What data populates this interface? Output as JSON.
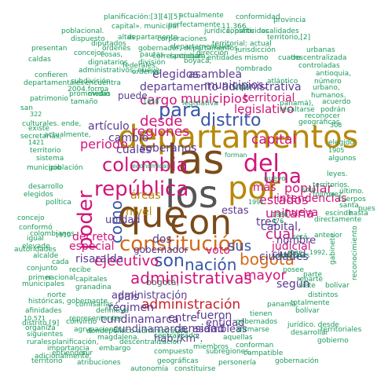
{
  "palette": {
    "green": "#1a9a5a",
    "teal": "#1a8a7a",
    "dark_green": "#2d6e2a",
    "dark_gray": "#555555",
    "gold": "#b8880a",
    "magenta": "#d0157a",
    "blue": "#3a56a8",
    "brown": "#7a4a1a",
    "red": "#c81e2a",
    "orange": "#d26a1a",
    "purple": "#5a3a90",
    "olive": "#6b7a1a"
  },
  "words": {
    "departamentos": "departamentos",
    "las": "las",
    "los": "los",
    "que": "que",
    "con": "con",
    "por": "por",
    "constitucion": "constitución",
    "colombia": "colombia",
    "republica": "república",
    "del": "del",
    "una": "una",
    "poder": "poder",
    "como": "como",
    "para": "para",
    "distrito": "distrito",
    "son": "son",
    "nacion": "nación",
    "sus": "sus",
    "bogota_big": "bogotá",
    "ejecutivo": "ejecutivo",
    "administrativas": "administrativas",
    "administracion": "administración",
    "regiones": "regiones",
    "desde": "desde",
    "cargo": "cargo",
    "municipios_big": "municipios",
    "capital": "capital",
    "legislativo": "legislativo",
    "territorial": "territorial",
    "estados": "estados",
    "unitaria": "unitaria",
    "popular": "popular",
    "cual": "cual",
    "mayor": "mayor",
    "voto": "voto",
    "nivel": "nivel",
    "areas": "áreas",
    "periodo": "periodo",
    "decreto": "decreto",
    "especial": "especial",
    "risaralda": "risaralda",
    "cundinamarca": "cundinamarca",
    "mas": "más",
    "nueva": "nueva",
    "intendencias": "intendencias",
    "judicial": "judicial",
    "entre": "entre",
    "fueron": "fueron",
    "regimen": "régimen",
    "departamento_adm": "departamento administrativa",
    "elegidos": "elegidos",
    "asamblea": "asamblea",
    "municipios_mid": "municipios.",
    "soberanos": "soberanos",
    "cambio": "cambió",
    "articulo": "artículo",
    "cuales": "cuales",
    "densidad": "densidad",
    "cundinamarca_asambleas": "cundinamarca, asambleas",
    "hab_km2": "hab./km².",
    "administracion_small": "administración",
    "tres": "tres",
    "ciudades": "ciudades",
    "gobernador": "gobernador",
    "capital2": "capital,",
    "unidad": "unidad",
    "pais": "país",
    "estas": "estas",
    "nombre": "nombre",
    "ciudad": "ciudad",
    "dos": "dos",
    "segun": "según",
    "entidad": "entidad",
    "bogota_small": "bogotá,",
    "caldas": "caldas",
    "provincia": "provincia",
    "departamento": "departamento",
    "conformidad": "conformidad",
    "planificacion": "planificación:[3][4][5]",
    "actualmente": "actualmente",
    "perfectamente": "perfectamente",
    "capital_municipal": "capital». municipal",
    "poblacional": "poblacional.",
    "dispuesto": "dispuesto",
    "altas": "altas",
    "departamento_small": "departamento",
    "juridica": "jurídica, partir",
    "corporaciones": "corporaciones",
    "gobernador_dep": "gobernador, departamentos",
    "ordenes": "órdenes",
    "departamentales": "departamentales",
    "cosas": "cosas,",
    "pautas": "pautas",
    "correspondian": "correspondían",
    "antioquia": "(antioquia,",
    "division": "división",
    "direccion": "dirección",
    "entidades_mismo": "entidades mismo",
    "boyaca": "boyacá,",
    "dignatarios": "dignatarios",
    "administrativos": "administrativos, nueve",
    "presentan": "presentan",
    "confieren": "confieren",
    "subdivision": "subdivisión",
    "departamentales2": "departamentales",
    "encuentra": "encuentra",
    "patrimonio": "patrimonio",
    "promovidas": "promovidas",
    "culturales": "culturales. ende,",
    "actualmente2": "actualmente,",
    "localidades": "localidades",
    "territorio2": "territorio,[2]",
    "territorial_dos": "territorial: actual",
    "constituidas": "constituidas",
    "nombrado": "nombrado",
    "cuatro": "cuatro",
    "descentralizada": "descentralizada",
    "controladas": "controladas",
    "urbanas": "urbanas",
    "antioquia2": "antioquia,",
    "numero": "número",
    "urbano": "urbano,",
    "humanos": "humanos.",
    "acuerdo": "acuerdo",
    "panama": "panamá),",
    "resaltarse": "resaltarse",
    "podran": "podrán",
    "reconocer": "reconocer",
    "geograficas": "geográficas.",
    "funcionan": "funcionan",
    "federales": "federales.",
    "legislativa": "legislativa",
    "1858": "1858",
    "1886": "1886",
    "1991": "1991",
    "1905": "1905",
    "1910": "1910",
    "1992": "1992,",
    "1421": "1421",
    "322": "322",
    "306": "306",
    "11366": "11.366",
    "476": "476",
    "10571": "10.571",
    "economicas": "económicas",
    "forman": "forman",
    "segun2": "según",
    "elegido": "elegido",
    "algunos": "algunos",
    "reconocimiento": "reconocimiento",
    "anterior": "anterior",
    "colombianos": "colombianos",
    "igual": "igual",
    "elevado": "elevado",
    "alcalde": "alcalde",
    "conjunto": "conjunto",
    "primer": "primer",
    "nacional": "nacional",
    "municipales": "municipales",
    "capitales": "capitales",
    "granadina": "granadina",
    "historicas": "históricas, gobernante",
    "afinidades": "afinidades",
    "comisarias": "comisarías",
    "representantes": "representantes",
    "agrupaciones": "agrupaciones",
    "rurales": "rurales",
    "importancia": "importancia",
    "planificacion2": "planificación,",
    "adicionalmente": "adicionalmente,",
    "atribuciones": "atribuciones",
    "autonomia": "autonomía",
    "constituirse": "constituirse",
    "personeria": "personería",
    "gobernacion": "gobernación",
    "geograficas2": "geográficas",
    "compatible": "compatible",
    "subregiones": "subregiones,",
    "miembros": "miembros",
    "compuesto": "compuesto",
    "municipio": "municipio",
    "conforman": "conforman",
    "entienden": "entienden",
    "embargo": "embargo",
    "centralizado": "centralizado,",
    "magdalena": "magdalena.",
    "descentralizacion": "descentralización",
    "dondepolitico": "dondepolítico-administrativa",
    "definitiva": "definitiva",
    "convirtio": "convirtió",
    "organiza": "organiza",
    "siguientes": "siguientes",
    "distrito_jp": "distrito,[9]",
    "territorio_cap": "territorio",
    "totalmente": "totalmente",
    "bolivar": "bolívar",
    "panama2": "panamá,",
    "tienen": "tienen",
    "juridico": "jurídico. desde",
    "afirmarse": "afirmarse",
    "desarrollar": "desarrollar",
    "gobierno": "gobierno",
    "gobernados": "gobernados",
    "aquellas": "aquellas",
    "territoriales": "territoriales",
    "distintos": "distintos",
    "siete": "siete",
    "gabinete": "gabinete",
    "parte": "parte",
    "reparte": "reparte",
    "directamente": "directamente",
    "escindir": "escindir",
    "hasta": "hasta",
    "bolivar2": "bolívar",
    "culturales2": "culturales",
    "ultimo": "último.",
    "territorios": "territorios.",
    "leyes": "leyes.",
    "vez": "vez",
    "cuerpos": "cuerpos",
    "santa": "santa",
    "solo": "solo",
    "tolima": "tolima",
    "mar": "mar",
    "sera": "será",
    "posee": "posee",
    "pues": "pues",
    "existe": "existe",
    "san": "san",
    "secretarias": "secretarías,",
    "concejo": "concejo",
    "conformo": "conformó",
    "autoridades": "autoridades",
    "poblacion": "población",
    "cada": "cada",
    "recibe": "recibe",
    "territorio3": "territorio",
    "desarrollo": "desarrollo",
    "sistema": "sistema",
    "politica": "política",
    "elegidos2": "elegidos",
    "puede": "puede",
    "tamano": "tamaño",
    "norte": "norte",
    "sur": "sur",
    "medio": "medio",
    "esta": "está",
    "diputados": "diputados",
    "ordenes2": "órdenes",
    "capital_bogota": "2004.forma",
    "jurisdiccion": "jurisdicción",
    "nuevo": "nuevo",
    "atlantico": "atlántico",
    "concejos": "concejos"
  }
}
